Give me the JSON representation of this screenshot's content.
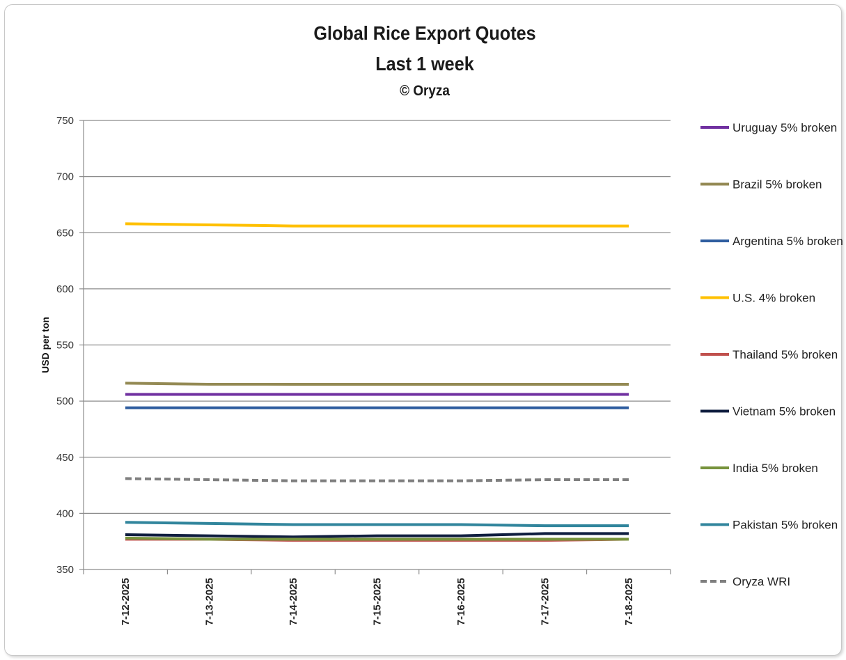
{
  "chart_data": {
    "type": "line",
    "title": "Global Rice Export Quotes",
    "subtitle": "Last 1 week",
    "credit": "© Oryza",
    "ylabel": "USD per ton",
    "xlabel": "",
    "ylim": [
      350,
      750
    ],
    "yticks": [
      350,
      400,
      450,
      500,
      550,
      600,
      650,
      700,
      750
    ],
    "grid": true,
    "legend_position": "right",
    "x": [
      "7-12-2025",
      "7-13-2025",
      "7-14-2025",
      "7-15-2025",
      "7-16-2025",
      "7-17-2025",
      "7-18-2025"
    ],
    "series": [
      {
        "name": "Uruguay 5% broken",
        "color": "#7030a0",
        "dashed": false,
        "values": [
          506,
          506,
          506,
          506,
          506,
          506,
          506
        ]
      },
      {
        "name": "Brazil 5% broken",
        "color": "#948a54",
        "dashed": false,
        "values": [
          516,
          515,
          515,
          515,
          515,
          515,
          515
        ]
      },
      {
        "name": "Argentina 5% broken",
        "color": "#2e5d9f",
        "dashed": false,
        "values": [
          494,
          494,
          494,
          494,
          494,
          494,
          494
        ]
      },
      {
        "name": "U.S. 4% broken",
        "color": "#ffc000",
        "dashed": false,
        "values": [
          658,
          657,
          656,
          656,
          656,
          656,
          656
        ]
      },
      {
        "name": "Thailand 5% broken",
        "color": "#c0504d",
        "dashed": false,
        "values": [
          377,
          377,
          376,
          376,
          376,
          376,
          377
        ]
      },
      {
        "name": "Vietnam 5% broken",
        "color": "#0f1d3f",
        "dashed": false,
        "values": [
          381,
          380,
          379,
          380,
          380,
          382,
          382
        ]
      },
      {
        "name": "India 5% broken",
        "color": "#77933c",
        "dashed": false,
        "values": [
          378,
          377,
          377,
          377,
          377,
          377,
          377
        ]
      },
      {
        "name": "Pakistan 5% broken",
        "color": "#31859c",
        "dashed": false,
        "values": [
          392,
          391,
          390,
          390,
          390,
          389,
          389
        ]
      },
      {
        "name": "Oryza WRI",
        "color": "#7f7f7f",
        "dashed": true,
        "values": [
          431,
          430,
          429,
          429,
          429,
          430,
          430
        ]
      }
    ]
  }
}
